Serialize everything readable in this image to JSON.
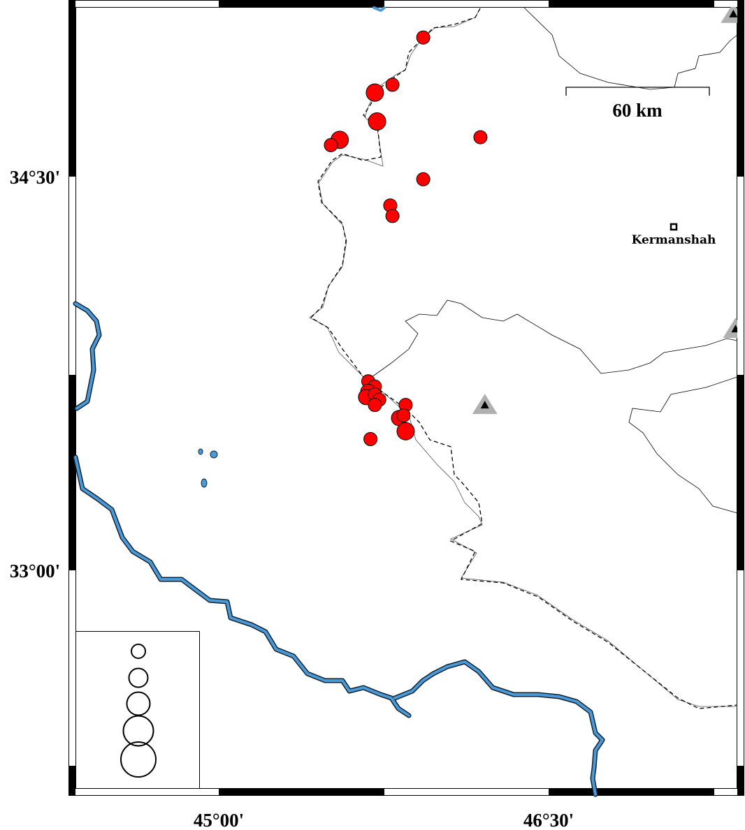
{
  "map": {
    "axes": {
      "lat_ticks": [
        {
          "value": 34.5,
          "label": "34°30'"
        },
        {
          "value": 33.0,
          "label": "33°00'"
        }
      ],
      "lon_ticks": [
        {
          "value": 45.0,
          "label": "45°00'"
        },
        {
          "value": 46.5,
          "label": "46°30'"
        }
      ]
    },
    "scale_bar": {
      "label": "60 km"
    },
    "city": {
      "name": "Kermanshah",
      "lon": 47.06,
      "lat": 34.33
    },
    "colors": {
      "event": "#ff0000",
      "river": "#4a9ad8",
      "station": "#b0b0b0"
    },
    "stations": [
      {
        "lon": 46.21,
        "lat": 33.63,
        "icon": "triangle-station"
      },
      {
        "lon": 47.34,
        "lat": 35.12,
        "icon": "triangle-station"
      },
      {
        "lon": 47.35,
        "lat": 33.92,
        "icon": "triangle-station"
      }
    ],
    "events": [
      {
        "lon": 45.93,
        "lat": 35.03,
        "size": 1
      },
      {
        "lon": 45.79,
        "lat": 34.85,
        "size": 1
      },
      {
        "lon": 45.71,
        "lat": 34.82,
        "size": 3
      },
      {
        "lon": 45.72,
        "lat": 34.71,
        "size": 3
      },
      {
        "lon": 45.55,
        "lat": 34.64,
        "size": 3
      },
      {
        "lon": 45.51,
        "lat": 34.62,
        "size": 1
      },
      {
        "lon": 46.19,
        "lat": 34.65,
        "size": 1
      },
      {
        "lon": 45.93,
        "lat": 34.49,
        "size": 1
      },
      {
        "lon": 45.78,
        "lat": 34.39,
        "size": 1
      },
      {
        "lon": 45.79,
        "lat": 34.35,
        "size": 1
      },
      {
        "lon": 45.68,
        "lat": 33.72,
        "size": 1
      },
      {
        "lon": 45.71,
        "lat": 33.7,
        "size": 1
      },
      {
        "lon": 45.68,
        "lat": 33.68,
        "size": 2
      },
      {
        "lon": 45.67,
        "lat": 33.66,
        "size": 2
      },
      {
        "lon": 45.71,
        "lat": 33.67,
        "size": 1
      },
      {
        "lon": 45.73,
        "lat": 33.65,
        "size": 1
      },
      {
        "lon": 45.71,
        "lat": 33.63,
        "size": 1
      },
      {
        "lon": 45.85,
        "lat": 33.63,
        "size": 1
      },
      {
        "lon": 45.82,
        "lat": 33.58,
        "size": 2
      },
      {
        "lon": 45.84,
        "lat": 33.59,
        "size": 1
      },
      {
        "lon": 45.85,
        "lat": 33.53,
        "size": 3
      },
      {
        "lon": 45.69,
        "lat": 33.5,
        "size": 1
      }
    ],
    "legend": {
      "circle_sizes": [
        1,
        2,
        3,
        4,
        5
      ]
    }
  }
}
